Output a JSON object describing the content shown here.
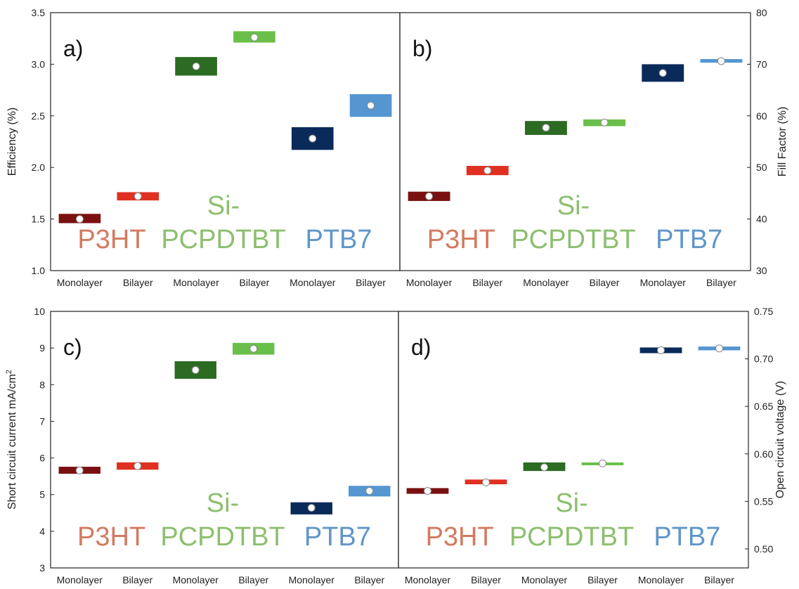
{
  "chart_data": [
    {
      "type": "box",
      "panel_label": "a)",
      "y_axis_side": "left",
      "ylabel": "Efficiency (%)",
      "ylim": [
        1.0,
        3.5
      ],
      "yticks": [
        "1.0",
        "1.5",
        "2.0",
        "2.5",
        "3.0",
        "3.5"
      ],
      "categories": [
        "Monolayer",
        "Bilayer",
        "Monolayer",
        "Bilayer",
        "Monolayer",
        "Bilayer"
      ],
      "groups": [
        "P3HT",
        "Si-",
        "PCPDTBT",
        "PTB7"
      ],
      "group_colors": [
        "#d37a60",
        "#8cbf6e",
        "#8cbf6e",
        "#5f96c8"
      ],
      "boxes": [
        {
          "low": 1.46,
          "high": 1.55,
          "mean": 1.5,
          "color": "#7a1010"
        },
        {
          "low": 1.68,
          "high": 1.76,
          "mean": 1.72,
          "color": "#e03022"
        },
        {
          "low": 2.89,
          "high": 3.07,
          "mean": 2.98,
          "color": "#2b6b22"
        },
        {
          "low": 3.21,
          "high": 3.32,
          "mean": 3.26,
          "color": "#6abf4a"
        },
        {
          "low": 2.17,
          "high": 2.39,
          "mean": 2.28,
          "color": "#0a2a5a"
        },
        {
          "low": 2.49,
          "high": 2.71,
          "mean": 2.6,
          "color": "#5596d1"
        }
      ]
    },
    {
      "type": "box",
      "panel_label": "b)",
      "y_axis_side": "right",
      "ylabel": "Fill Factor (%)",
      "ylim": [
        30,
        80
      ],
      "yticks": [
        "30",
        "40",
        "50",
        "60",
        "70",
        "80"
      ],
      "categories": [
        "Monolayer",
        "Bilayer",
        "Monolayer",
        "Bilayer",
        "Monolayer",
        "Bilayer"
      ],
      "groups": [
        "P3HT",
        "Si-",
        "PCPDTBT",
        "PTB7"
      ],
      "group_colors": [
        "#d37a60",
        "#8cbf6e",
        "#8cbf6e",
        "#5f96c8"
      ],
      "boxes": [
        {
          "low": 43.5,
          "high": 45.3,
          "mean": 44.4,
          "color": "#7a1010"
        },
        {
          "low": 48.5,
          "high": 50.3,
          "mean": 49.4,
          "color": "#e03022"
        },
        {
          "low": 56.3,
          "high": 59.0,
          "mean": 57.7,
          "color": "#2b6b22"
        },
        {
          "low": 58.0,
          "high": 59.3,
          "mean": 58.7,
          "color": "#6abf4a"
        },
        {
          "low": 66.6,
          "high": 70.0,
          "mean": 68.3,
          "color": "#0a2a5a"
        },
        {
          "low": 70.3,
          "high": 71.0,
          "mean": 70.6,
          "color": "#5596d1"
        }
      ]
    },
    {
      "type": "box",
      "panel_label": "c)",
      "y_axis_side": "left",
      "ylabel": "Short circuit current mA/cm",
      "ylabel_superscript": "2",
      "ylim": [
        3,
        10
      ],
      "yticks": [
        "3",
        "4",
        "5",
        "6",
        "7",
        "8",
        "9",
        "10"
      ],
      "categories": [
        "Monolayer",
        "Bilayer",
        "Monolayer",
        "Bilayer",
        "Monolayer",
        "Bilayer"
      ],
      "groups": [
        "P3HT",
        "Si-",
        "PCPDTBT",
        "PTB7"
      ],
      "group_colors": [
        "#d37a60",
        "#8cbf6e",
        "#8cbf6e",
        "#5f96c8"
      ],
      "boxes": [
        {
          "low": 5.57,
          "high": 5.76,
          "mean": 5.66,
          "color": "#7a1010"
        },
        {
          "low": 5.68,
          "high": 5.88,
          "mean": 5.78,
          "color": "#e03022"
        },
        {
          "low": 8.16,
          "high": 8.64,
          "mean": 8.4,
          "color": "#2b6b22"
        },
        {
          "low": 8.82,
          "high": 9.14,
          "mean": 8.98,
          "color": "#6abf4a"
        },
        {
          "low": 4.46,
          "high": 4.79,
          "mean": 4.64,
          "color": "#0a2a5a"
        },
        {
          "low": 4.95,
          "high": 5.24,
          "mean": 5.1,
          "color": "#5596d1"
        }
      ]
    },
    {
      "type": "box",
      "panel_label": "d)",
      "y_axis_side": "right",
      "ylabel": "Open circuit voltage (V)",
      "ylim": [
        0.48,
        0.75
      ],
      "yticks": [
        "0.50",
        "0.55",
        "0.60",
        "0.65",
        "0.70",
        "0.75"
      ],
      "categories": [
        "Monolayer",
        "Bilayer",
        "Monolayer",
        "Bilayer",
        "Monolayer",
        "Bilayer"
      ],
      "groups": [
        "P3HT",
        "Si-",
        "PCPDTBT",
        "PTB7"
      ],
      "group_colors": [
        "#d37a60",
        "#8cbf6e",
        "#8cbf6e",
        "#5f96c8"
      ],
      "boxes": [
        {
          "low": 0.558,
          "high": 0.564,
          "mean": 0.561,
          "color": "#7a1010"
        },
        {
          "low": 0.568,
          "high": 0.573,
          "mean": 0.57,
          "color": "#e03022"
        },
        {
          "low": 0.582,
          "high": 0.591,
          "mean": 0.586,
          "color": "#2b6b22"
        },
        {
          "low": 0.589,
          "high": 0.591,
          "mean": 0.59,
          "color": "#6abf4a"
        },
        {
          "low": 0.706,
          "high": 0.712,
          "mean": 0.709,
          "color": "#0a2a5a"
        },
        {
          "low": 0.709,
          "high": 0.713,
          "mean": 0.711,
          "color": "#5596d1"
        }
      ]
    }
  ]
}
